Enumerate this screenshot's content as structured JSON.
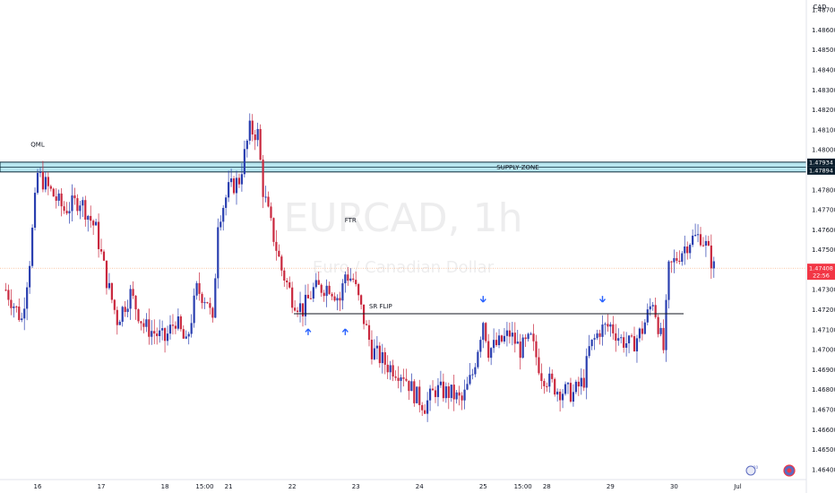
{
  "chart_data": {
    "type": "candlestick",
    "watermark_symbol": "EURCAD, 1h",
    "watermark_name": "Euro / Canadian Dollar",
    "currency": "CAD",
    "ylim": [
      1.4635,
      1.4875
    ],
    "price_ticks": [
      "1.48700",
      "1.48600",
      "1.48500",
      "1.48400",
      "1.48300",
      "1.48200",
      "1.48100",
      "1.48000",
      "1.47800",
      "1.47700",
      "1.47600",
      "1.47500",
      "1.47300",
      "1.47200",
      "1.47100",
      "1.47000",
      "1.46900",
      "1.46800",
      "1.46700",
      "1.46600",
      "1.46500",
      "1.46400"
    ],
    "date_ticks": [
      {
        "label": "16",
        "pos": 0
      },
      {
        "label": "17",
        "pos": 24
      },
      {
        "label": "18",
        "pos": 48
      },
      {
        "label": "15:00",
        "pos": 63
      },
      {
        "label": "21",
        "pos": 72
      },
      {
        "label": "22",
        "pos": 96
      },
      {
        "label": "23",
        "pos": 120
      },
      {
        "label": "24",
        "pos": 144
      },
      {
        "label": "25",
        "pos": 168
      },
      {
        "label": "15:00",
        "pos": 183
      },
      {
        "label": "28",
        "pos": 192
      },
      {
        "label": "29",
        "pos": 216
      },
      {
        "label": "30",
        "pos": 240
      },
      {
        "label": "Jul",
        "pos": 264
      }
    ],
    "supply_zone": {
      "label": "SUPPLY ZONE",
      "top": "1.47934",
      "bottom": "1.47894"
    },
    "current_price": {
      "value": "1.47408",
      "countdown": "22:56"
    },
    "sr_flip": {
      "label": "SR FLIP",
      "price": 1.4718
    },
    "annotations": [
      {
        "label": "QML",
        "pos": 0,
        "price": 1.4799
      },
      {
        "label": "FTR",
        "pos": 118,
        "price": 1.4761
      }
    ],
    "arrows_up": [
      {
        "pos": 102,
        "price": 1.4714
      },
      {
        "pos": 116,
        "price": 1.4714
      }
    ],
    "arrows_down": [
      {
        "pos": 168,
        "price": 1.4722
      },
      {
        "pos": 213,
        "price": 1.4722
      }
    ],
    "colors": {
      "up": "#2a3fb0",
      "down": "#c9283e",
      "zone": "#b8e6ef",
      "current": "#f23645"
    },
    "waypoints": [
      {
        "i": -12,
        "p": 1.473
      },
      {
        "i": -6,
        "p": 1.4715
      },
      {
        "i": -3,
        "p": 1.4745
      },
      {
        "i": 0,
        "p": 1.4788
      },
      {
        "i": 10,
        "p": 1.477
      },
      {
        "i": 16,
        "p": 1.4775
      },
      {
        "i": 22,
        "p": 1.476
      },
      {
        "i": 26,
        "p": 1.4735
      },
      {
        "i": 30,
        "p": 1.4715
      },
      {
        "i": 35,
        "p": 1.4728
      },
      {
        "i": 40,
        "p": 1.4712
      },
      {
        "i": 48,
        "p": 1.4705
      },
      {
        "i": 52,
        "p": 1.4715
      },
      {
        "i": 56,
        "p": 1.4702
      },
      {
        "i": 60,
        "p": 1.473
      },
      {
        "i": 64,
        "p": 1.4725
      },
      {
        "i": 66,
        "p": 1.4712
      },
      {
        "i": 68,
        "p": 1.4765
      },
      {
        "i": 72,
        "p": 1.478
      },
      {
        "i": 76,
        "p": 1.4785
      },
      {
        "i": 80,
        "p": 1.481
      },
      {
        "i": 83,
        "p": 1.4808
      },
      {
        "i": 85,
        "p": 1.478
      },
      {
        "i": 88,
        "p": 1.4762
      },
      {
        "i": 92,
        "p": 1.474
      },
      {
        "i": 96,
        "p": 1.4726
      },
      {
        "i": 100,
        "p": 1.472
      },
      {
        "i": 104,
        "p": 1.473
      },
      {
        "i": 110,
        "p": 1.4732
      },
      {
        "i": 114,
        "p": 1.4725
      },
      {
        "i": 116,
        "p": 1.4738
      },
      {
        "i": 119,
        "p": 1.4735
      },
      {
        "i": 122,
        "p": 1.472
      },
      {
        "i": 126,
        "p": 1.47
      },
      {
        "i": 132,
        "p": 1.4692
      },
      {
        "i": 138,
        "p": 1.4688
      },
      {
        "i": 142,
        "p": 1.4678
      },
      {
        "i": 146,
        "p": 1.4672
      },
      {
        "i": 150,
        "p": 1.468
      },
      {
        "i": 156,
        "p": 1.4678
      },
      {
        "i": 160,
        "p": 1.4674
      },
      {
        "i": 164,
        "p": 1.4688
      },
      {
        "i": 168,
        "p": 1.4715
      },
      {
        "i": 170,
        "p": 1.47
      },
      {
        "i": 174,
        "p": 1.4703
      },
      {
        "i": 178,
        "p": 1.4708
      },
      {
        "i": 182,
        "p": 1.47
      },
      {
        "i": 186,
        "p": 1.4705
      },
      {
        "i": 190,
        "p": 1.4688
      },
      {
        "i": 196,
        "p": 1.468
      },
      {
        "i": 202,
        "p": 1.4678
      },
      {
        "i": 206,
        "p": 1.4685
      },
      {
        "i": 208,
        "p": 1.47
      },
      {
        "i": 212,
        "p": 1.471
      },
      {
        "i": 216,
        "p": 1.4712
      },
      {
        "i": 220,
        "p": 1.4705
      },
      {
        "i": 224,
        "p": 1.4702
      },
      {
        "i": 228,
        "p": 1.471
      },
      {
        "i": 232,
        "p": 1.4725
      },
      {
        "i": 236,
        "p": 1.47
      },
      {
        "i": 238,
        "p": 1.474
      },
      {
        "i": 242,
        "p": 1.4748
      },
      {
        "i": 246,
        "p": 1.4755
      },
      {
        "i": 250,
        "p": 1.4757
      },
      {
        "i": 252,
        "p": 1.4752
      },
      {
        "i": 255,
        "p": 1.4741
      }
    ]
  }
}
